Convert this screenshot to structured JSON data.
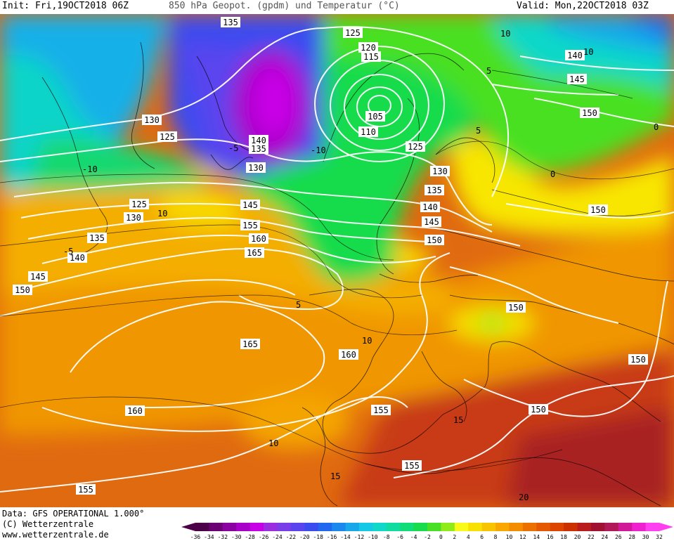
{
  "header": {
    "init": "Init: Fri,19OCT2018 06Z",
    "title": "850 hPa Geopot. (gpdm) und Temperatur (°C)",
    "valid": "Valid: Mon,22OCT2018 03Z"
  },
  "footer": {
    "data_source": "Data: GFS OPERATIONAL 1.000°",
    "copyright": "(C) Wetterzentrale",
    "url": "www.wetterzentrale.de"
  },
  "colorbar": {
    "ticks": [
      "-36",
      "-34",
      "-32",
      "-30",
      "-28",
      "-26",
      "-24",
      "-22",
      "-20",
      "-18",
      "-16",
      "-14",
      "-12",
      "-10",
      "-8",
      "-6",
      "-4",
      "-2",
      "0",
      "2",
      "4",
      "6",
      "8",
      "10",
      "12",
      "14",
      "16",
      "18",
      "20",
      "22",
      "24",
      "26",
      "28",
      "30",
      "32"
    ],
    "colors": [
      "#4b0047",
      "#6a0074",
      "#8a00a0",
      "#a800c8",
      "#c800e6",
      "#9a2de0",
      "#7a3ee8",
      "#5a44ee",
      "#3a4cf0",
      "#2268ee",
      "#1a88ec",
      "#18a8ea",
      "#14c8e6",
      "#10d8c8",
      "#10dca0",
      "#10dc78",
      "#18dc4c",
      "#48e024",
      "#90ec18",
      "#fafa18",
      "#f8e000",
      "#f8c400",
      "#f8a800",
      "#f48c00",
      "#ec7000",
      "#e45800",
      "#dc4400",
      "#cc3000",
      "#b81c1c",
      "#a01030",
      "#b01858",
      "#d01898",
      "#ee20d0",
      "#ff40f0"
    ]
  },
  "map": {
    "geopotential_labels": [
      "135",
      "125",
      "120",
      "115",
      "105",
      "110",
      "130",
      "125",
      "140",
      "135",
      "130",
      "125",
      "130",
      "135",
      "140",
      "145",
      "150",
      "155",
      "160",
      "165",
      "165",
      "160",
      "155",
      "150",
      "145",
      "140",
      "135",
      "130",
      "125",
      "140",
      "145",
      "150",
      "150",
      "150",
      "150",
      "150",
      "145",
      "150",
      "155",
      "160",
      "155"
    ],
    "temperature_labels": [
      "-10",
      "-10",
      "-5",
      "0",
      "5",
      "5",
      "10",
      "10",
      "10",
      "15",
      "15",
      "20",
      "0",
      "5",
      "-5",
      "10",
      "10"
    ]
  }
}
